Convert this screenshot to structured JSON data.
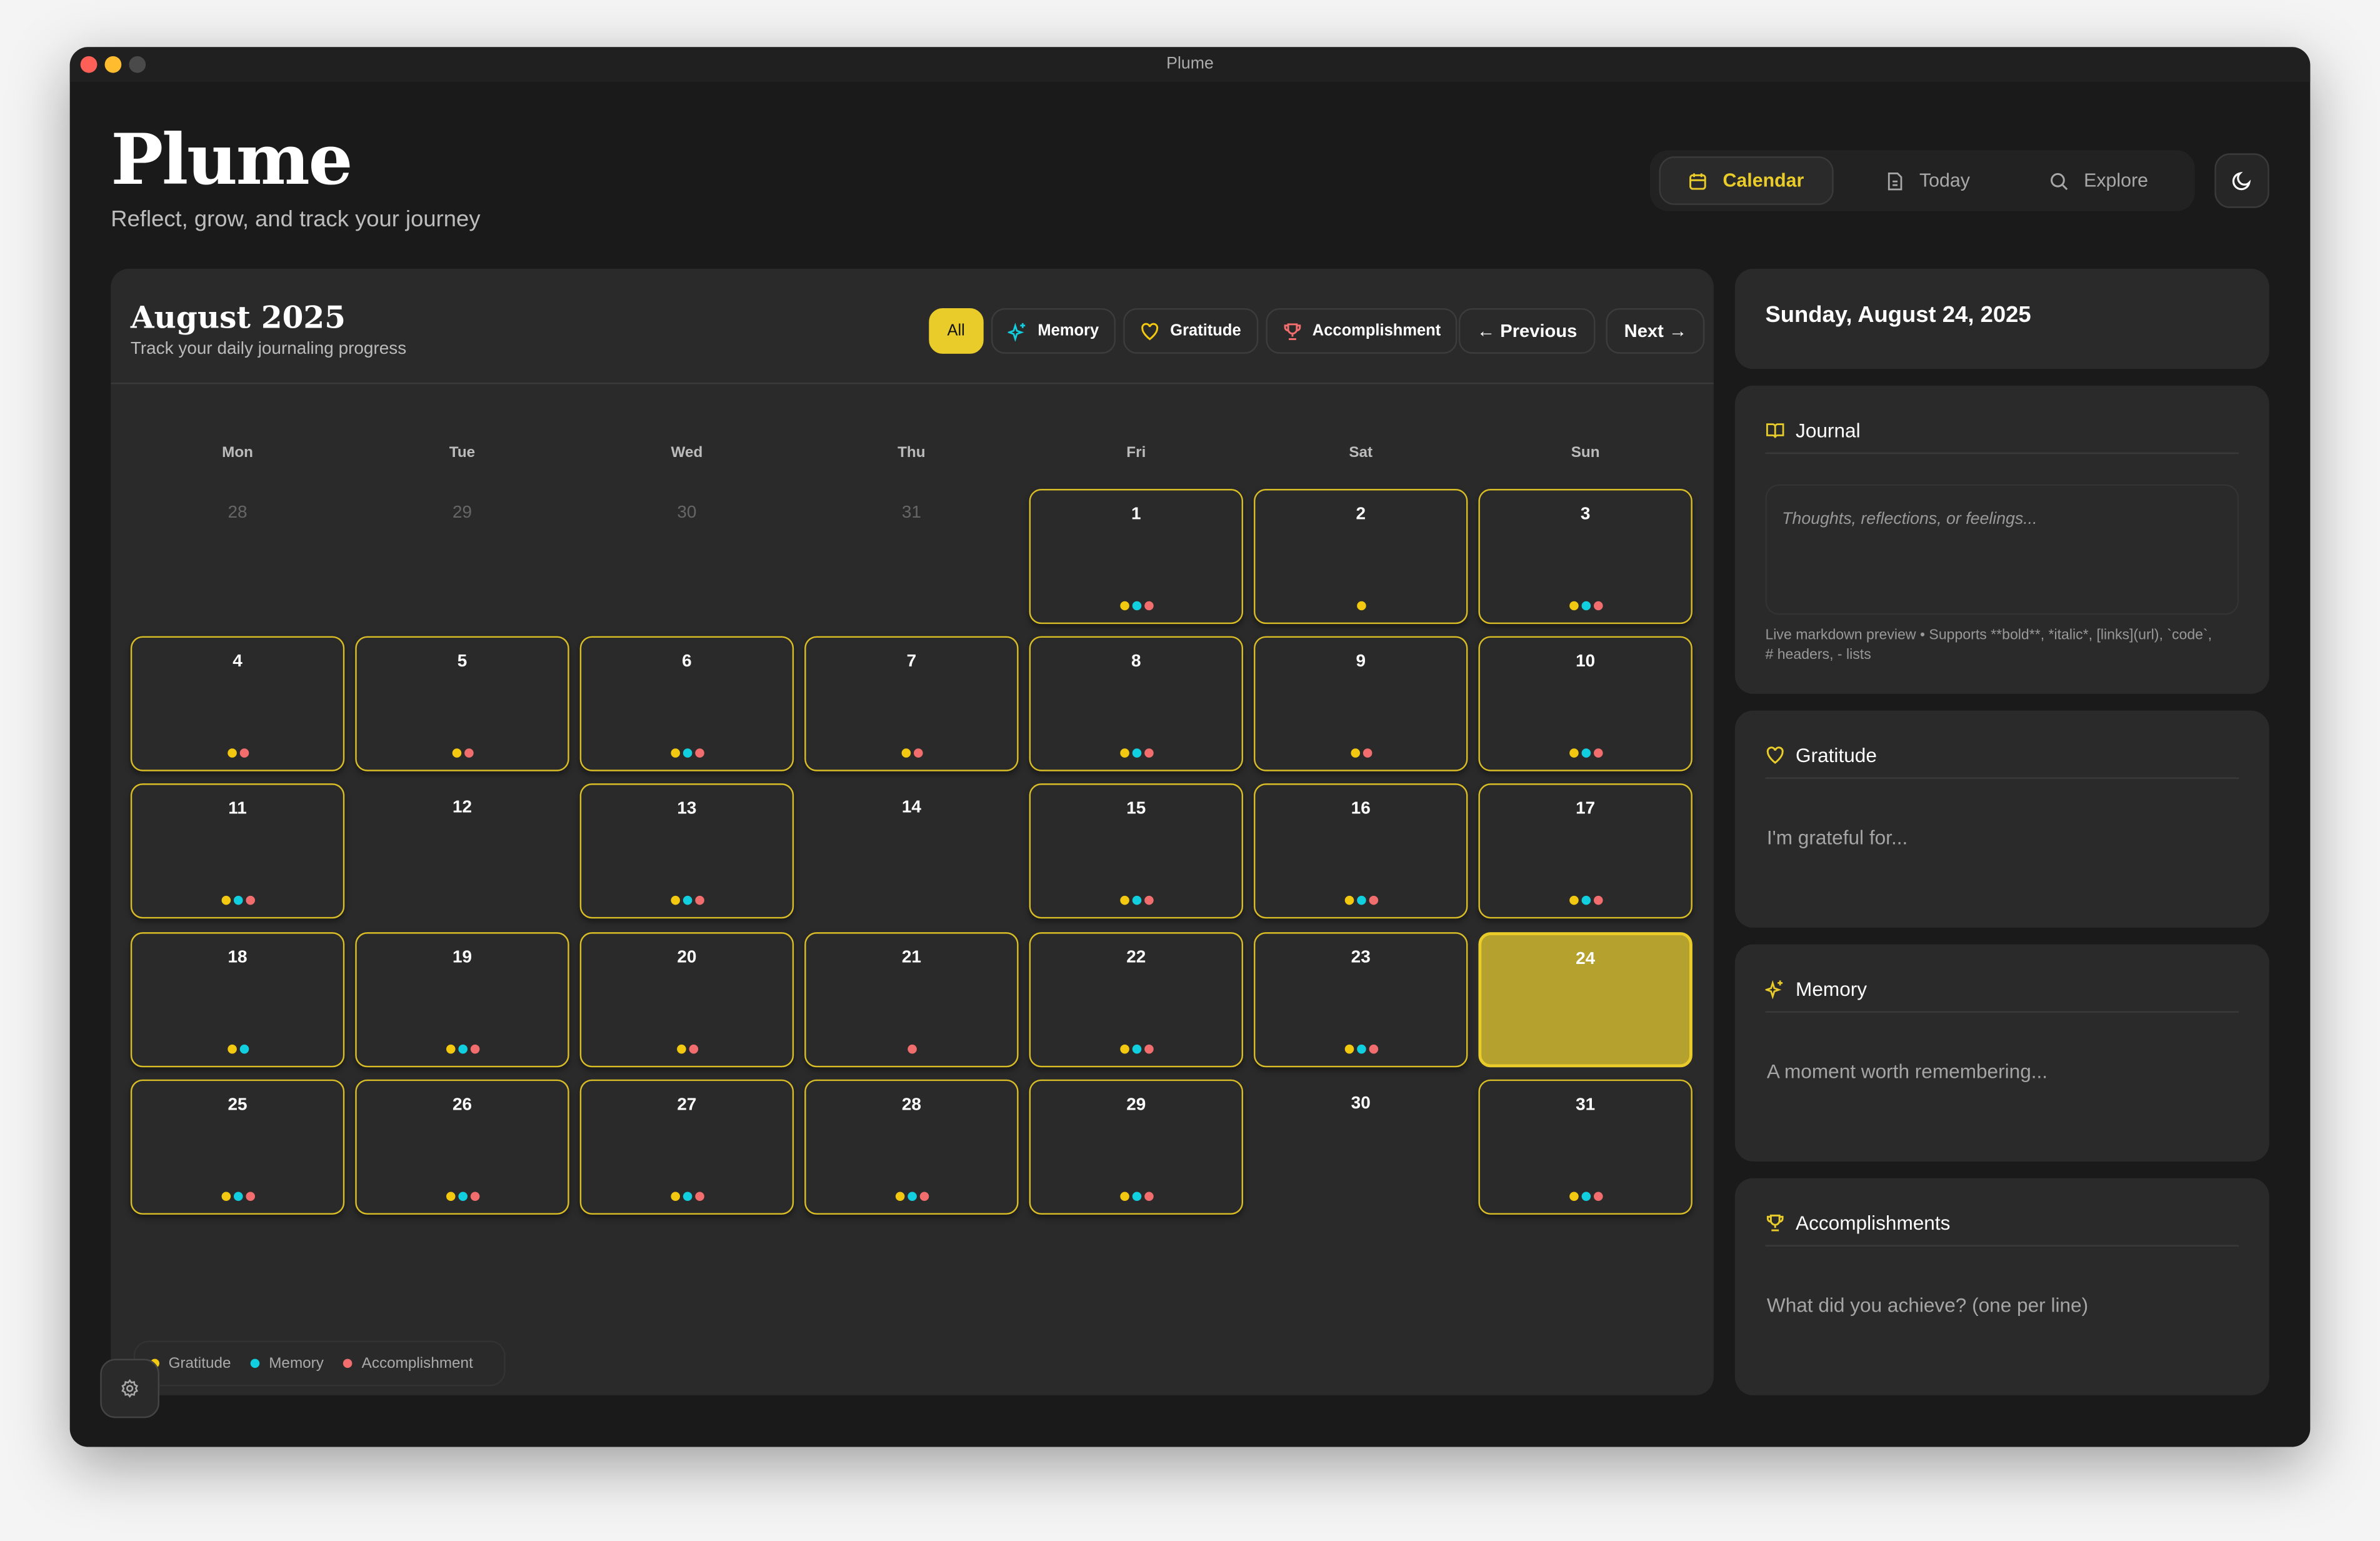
{
  "window": {
    "title": "Plume"
  },
  "header": {
    "brand": "Plume",
    "tagline": "Reflect, grow, and track your journey"
  },
  "nav": [
    {
      "label": "Calendar",
      "icon": "calendar-icon",
      "active": true
    },
    {
      "label": "Today",
      "icon": "document-icon"
    },
    {
      "label": "Explore",
      "icon": "search-icon"
    }
  ],
  "calendar": {
    "title": "August 2025",
    "subtitle": "Track your daily journaling progress",
    "filters": {
      "all": "All",
      "memory": "Memory",
      "gratitude": "Gratitude",
      "accomplishment": "Accomplishment"
    },
    "previous": "← Previous",
    "next": "Next →",
    "weekdays": [
      "Mon",
      "Tue",
      "Wed",
      "Thu",
      "Fri",
      "Sat",
      "Sun"
    ],
    "leading_days": [
      "28",
      "29",
      "30",
      "31"
    ],
    "days": [
      [
        "g",
        "m",
        "a"
      ],
      [
        "g"
      ],
      [
        "g",
        "m",
        "a"
      ],
      [
        "g",
        "a"
      ],
      [
        "g",
        "a"
      ],
      [
        "g",
        "m",
        "a"
      ],
      [
        "g",
        "a"
      ],
      [
        "g",
        "m",
        "a"
      ],
      [
        "g",
        "a"
      ],
      [
        "g",
        "m",
        "a"
      ],
      [
        "g",
        "m",
        "a"
      ],
      [],
      [
        "g",
        "m",
        "a"
      ],
      [],
      [
        "g",
        "m",
        "a"
      ],
      [
        "g",
        "m",
        "a"
      ],
      [
        "g",
        "m",
        "a"
      ],
      [
        "g",
        "m"
      ],
      [
        "g",
        "m",
        "a"
      ],
      [
        "g",
        "a"
      ],
      [
        "a"
      ],
      [
        "g",
        "m",
        "a"
      ],
      [
        "g",
        "m",
        "a"
      ],
      [],
      [
        "g",
        "m",
        "a"
      ],
      [
        "g",
        "m",
        "a"
      ],
      [
        "g",
        "m",
        "a"
      ],
      [
        "g",
        "m",
        "a"
      ],
      [
        "g",
        "m",
        "a"
      ],
      [],
      [
        "g",
        "m",
        "a"
      ]
    ],
    "selected_day": 24,
    "legend": {
      "gratitude": "Gratitude",
      "memory": "Memory",
      "accomplishment": "Accomplishment"
    }
  },
  "colors": {
    "g": "#f2c811",
    "m": "#12cfe0",
    "a": "#f26d6d",
    "accent": "#e9cc2a"
  },
  "sidebar": {
    "date": "Sunday, August 24, 2025",
    "journal": {
      "title": "Journal",
      "placeholder": "Thoughts, reflections, or feelings...",
      "hint": "Live markdown preview • Supports **bold**, *italic*, [links](url), `code`, # headers, - lists"
    },
    "gratitude": {
      "title": "Gratitude",
      "placeholder": "I'm grateful for..."
    },
    "memory": {
      "title": "Memory",
      "placeholder": "A moment worth remembering..."
    },
    "accomplishments": {
      "title": "Accomplishments",
      "placeholder": "What did you achieve? (one per line)"
    }
  }
}
